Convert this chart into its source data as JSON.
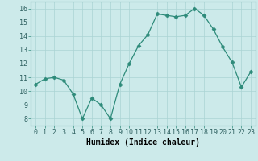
{
  "x": [
    0,
    1,
    2,
    3,
    4,
    5,
    6,
    7,
    8,
    9,
    10,
    11,
    12,
    13,
    14,
    15,
    16,
    17,
    18,
    19,
    20,
    21,
    22,
    23
  ],
  "y": [
    10.5,
    10.9,
    11.0,
    10.8,
    9.8,
    8.0,
    9.5,
    9.0,
    8.0,
    10.5,
    12.0,
    13.3,
    14.1,
    15.6,
    15.5,
    15.4,
    15.5,
    16.0,
    15.5,
    14.5,
    13.2,
    12.1,
    10.3,
    11.4
  ],
  "line_color": "#2e8b7a",
  "marker": "D",
  "marker_size": 2.5,
  "bg_color": "#cceaea",
  "grid_color": "#aad4d4",
  "xlabel": "Humidex (Indice chaleur)",
  "xlim": [
    -0.5,
    23.5
  ],
  "ylim": [
    7.5,
    16.5
  ],
  "yticks": [
    8,
    9,
    10,
    11,
    12,
    13,
    14,
    15,
    16
  ],
  "xticks": [
    0,
    1,
    2,
    3,
    4,
    5,
    6,
    7,
    8,
    9,
    10,
    11,
    12,
    13,
    14,
    15,
    16,
    17,
    18,
    19,
    20,
    21,
    22,
    23
  ],
  "xlabel_fontsize": 7,
  "tick_fontsize": 6
}
